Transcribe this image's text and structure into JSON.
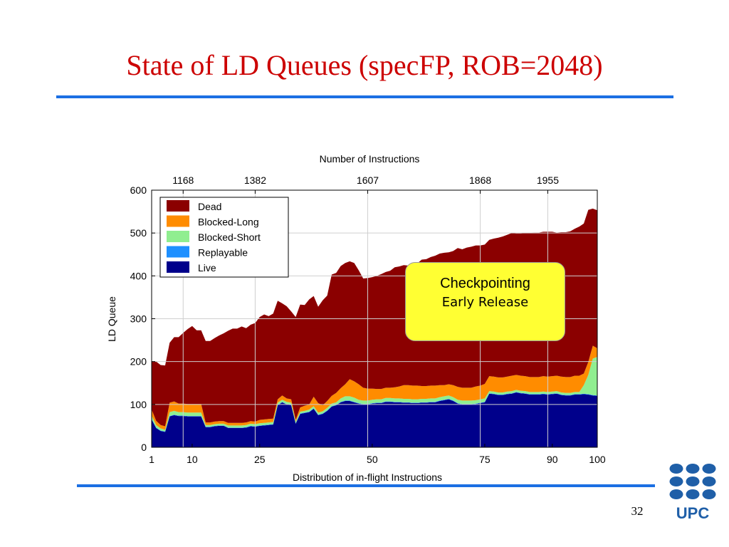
{
  "slide": {
    "title": "State of LD Queues (specFP, ROB=2048)",
    "page_number": "32",
    "logo_text": "UPC",
    "colors": {
      "title": "#cc0000",
      "rule": "#1b6fe3",
      "logo": "#1f5fa8",
      "callout": "#ffff33"
    }
  },
  "callout": {
    "line1": "Checkpointing",
    "line2": "Early Release"
  },
  "chart_data": {
    "type": "area",
    "stacked": true,
    "title": "",
    "xlabel": "Distribution of in-flight Instructions",
    "ylabel": "LD Queue",
    "x2label": "Number of Instructions",
    "xlim": [
      1,
      100
    ],
    "ylim": [
      0,
      600
    ],
    "xticks": [
      1,
      10,
      25,
      50,
      75,
      90,
      100
    ],
    "yticks": [
      0,
      100,
      200,
      300,
      400,
      500,
      600
    ],
    "x2ticks": [
      {
        "x": 8,
        "label": "1168"
      },
      {
        "x": 24,
        "label": "1382"
      },
      {
        "x": 49,
        "label": "1607"
      },
      {
        "x": 74,
        "label": "1868"
      },
      {
        "x": 89,
        "label": "1955"
      }
    ],
    "grid": true,
    "legend_position": "top-left",
    "x": [
      1,
      2,
      3,
      4,
      5,
      6,
      7,
      8,
      9,
      10,
      11,
      12,
      13,
      14,
      15,
      16,
      17,
      18,
      19,
      20,
      21,
      22,
      23,
      24,
      25,
      26,
      27,
      28,
      29,
      30,
      31,
      32,
      33,
      34,
      35,
      36,
      37,
      38,
      39,
      40,
      41,
      42,
      43,
      44,
      45,
      46,
      47,
      48,
      49,
      50,
      51,
      52,
      53,
      54,
      55,
      56,
      57,
      58,
      59,
      60,
      61,
      62,
      63,
      64,
      65,
      66,
      67,
      68,
      69,
      70,
      71,
      72,
      73,
      74,
      75,
      76,
      77,
      78,
      79,
      80,
      81,
      82,
      83,
      84,
      85,
      86,
      87,
      88,
      89,
      90,
      91,
      92,
      93,
      94,
      95,
      96,
      97,
      98,
      99,
      100
    ],
    "series": [
      {
        "name": "Live",
        "color": "#00008b",
        "values": [
          65,
          45,
          38,
          36,
          72,
          75,
          73,
          73,
          72,
          72,
          72,
          72,
          47,
          47,
          49,
          50,
          50,
          45,
          45,
          45,
          45,
          46,
          49,
          48,
          50,
          51,
          52,
          53,
          98,
          105,
          100,
          98,
          55,
          78,
          80,
          82,
          90,
          75,
          78,
          85,
          95,
          98,
          105,
          108,
          108,
          105,
          102,
          100,
          100,
          102,
          103,
          103,
          106,
          106,
          105,
          105,
          104,
          104,
          103,
          103,
          104,
          104,
          105,
          105,
          108,
          110,
          112,
          108,
          102,
          100,
          100,
          100,
          101,
          103,
          105,
          125,
          124,
          122,
          122,
          124,
          125,
          128,
          126,
          125,
          123,
          123,
          123,
          124,
          123,
          124,
          125,
          122,
          121,
          121,
          123,
          123,
          124,
          123,
          121,
          120
        ]
      },
      {
        "name": "Replayable",
        "color": "#1e90ff",
        "values": [
          1,
          1,
          1,
          1,
          1,
          1,
          1,
          1,
          1,
          1,
          1,
          1,
          1,
          1,
          1,
          1,
          1,
          1,
          1,
          1,
          1,
          1,
          1,
          1,
          1,
          1,
          1,
          1,
          1,
          1,
          1,
          1,
          1,
          1,
          1,
          1,
          1,
          1,
          1,
          1,
          1,
          1,
          1,
          1,
          1,
          1,
          1,
          1,
          1,
          1,
          1,
          1,
          1,
          1,
          1,
          1,
          1,
          1,
          1,
          1,
          1,
          1,
          1,
          1,
          1,
          1,
          1,
          1,
          1,
          1,
          1,
          1,
          1,
          1,
          1,
          1,
          1,
          1,
          1,
          1,
          1,
          1,
          1,
          1,
          1,
          1,
          1,
          1,
          1,
          1,
          1,
          1,
          1,
          1,
          1,
          1,
          1,
          1,
          1,
          1
        ]
      },
      {
        "name": "Blocked-Short",
        "color": "#90ee90",
        "values": [
          8,
          6,
          5,
          4,
          9,
          9,
          8,
          8,
          8,
          8,
          8,
          8,
          4,
          4,
          4,
          4,
          4,
          5,
          5,
          5,
          5,
          5,
          5,
          5,
          5,
          5,
          5,
          5,
          5,
          5,
          5,
          5,
          4,
          4,
          4,
          5,
          5,
          5,
          5,
          6,
          6,
          6,
          8,
          10,
          10,
          10,
          8,
          8,
          8,
          8,
          8,
          8,
          8,
          8,
          8,
          8,
          8,
          8,
          8,
          8,
          8,
          8,
          8,
          8,
          8,
          8,
          8,
          8,
          8,
          8,
          8,
          8,
          8,
          8,
          8,
          5,
          5,
          5,
          5,
          5,
          5,
          5,
          5,
          5,
          5,
          5,
          5,
          5,
          5,
          5,
          5,
          5,
          5,
          5,
          5,
          5,
          20,
          45,
          85,
          90
        ]
      },
      {
        "name": "Blocked-Long",
        "color": "#ff8c00",
        "values": [
          14,
          10,
          8,
          8,
          22,
          22,
          20,
          20,
          20,
          20,
          20,
          20,
          6,
          6,
          6,
          6,
          6,
          6,
          6,
          6,
          6,
          6,
          6,
          6,
          8,
          8,
          8,
          8,
          8,
          10,
          8,
          8,
          4,
          10,
          12,
          12,
          22,
          22,
          14,
          16,
          18,
          22,
          24,
          28,
          40,
          38,
          36,
          30,
          28,
          26,
          24,
          24,
          24,
          24,
          26,
          28,
          32,
          32,
          32,
          32,
          30,
          30,
          30,
          30,
          28,
          26,
          26,
          28,
          30,
          30,
          30,
          30,
          32,
          32,
          34,
          35,
          35,
          35,
          35,
          35,
          36,
          35,
          35,
          35,
          35,
          35,
          35,
          36,
          36,
          36,
          36,
          37,
          37,
          37,
          38,
          38,
          27,
          30,
          30,
          20
        ]
      },
      {
        "name": "Dead",
        "color": "#8b0000",
        "values": [
          112,
          138,
          140,
          142,
          140,
          150,
          155,
          165,
          175,
          182,
          172,
          172,
          190,
          190,
          195,
          200,
          205,
          215,
          220,
          220,
          225,
          220,
          225,
          230,
          240,
          245,
          240,
          245,
          230,
          215,
          215,
          205,
          240,
          240,
          235,
          245,
          235,
          225,
          245,
          246,
          283,
          280,
          285,
          283,
          275,
          276,
          266,
          255,
          258,
          260,
          264,
          268,
          270,
          273,
          280,
          280,
          280,
          279,
          280,
          285,
          295,
          296,
          300,
          303,
          307,
          309,
          308,
          313,
          324,
          323,
          327,
          329,
          329,
          327,
          325,
          318,
          322,
          326,
          329,
          331,
          333,
          330,
          332,
          334,
          336,
          337,
          337,
          337,
          338,
          337,
          334,
          337,
          338,
          340,
          343,
          348,
          350,
          355,
          320,
          322
        ]
      }
    ]
  }
}
